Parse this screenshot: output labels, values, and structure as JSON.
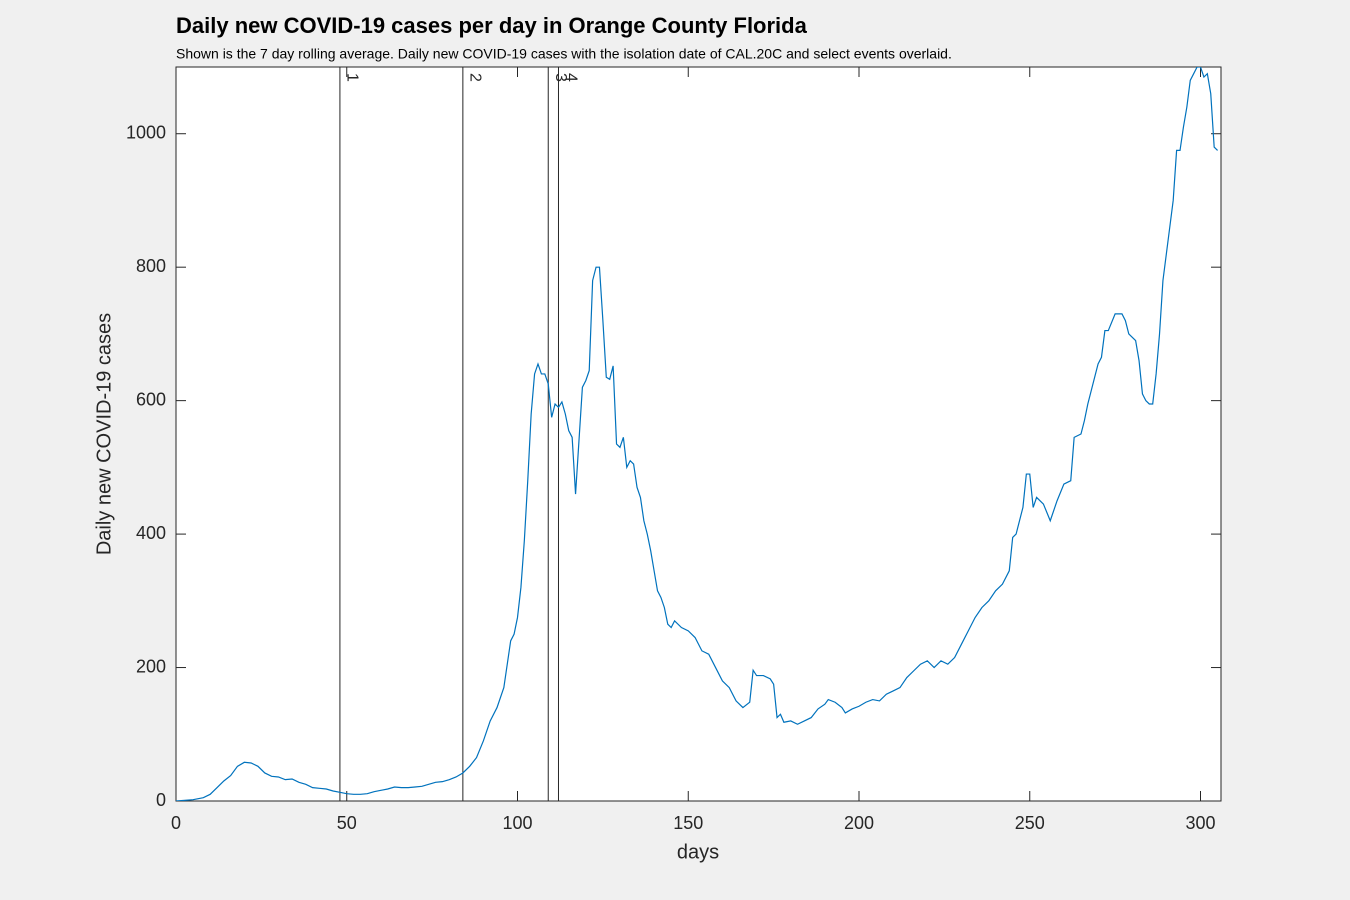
{
  "chart_data": {
    "type": "line",
    "title": "Daily new COVID-19 cases per day in Orange County Florida",
    "subtitle": "Shown is the 7 day rolling average. Daily new COVID-19 cases with the isolation date of CAL.20C and select events overlaid.",
    "x_label": "days",
    "y_label": "Daily new COVID-19 cases",
    "color": "#0072bd",
    "x": [
      0,
      5,
      8,
      10,
      12,
      14,
      16,
      18,
      20,
      22,
      24,
      26,
      28,
      30,
      32,
      34,
      36,
      38,
      40,
      42,
      44,
      46,
      48,
      50,
      52,
      54,
      56,
      58,
      60,
      62,
      64,
      66,
      68,
      70,
      72,
      74,
      76,
      78,
      80,
      82,
      84,
      86,
      88,
      90,
      92,
      94,
      96,
      98,
      99,
      100,
      101,
      102,
      103,
      104,
      105,
      106,
      107,
      108,
      109,
      110,
      111,
      112,
      113,
      114,
      115,
      116,
      117,
      118,
      119,
      120,
      121,
      122,
      123,
      124,
      125,
      126,
      127,
      128,
      129,
      130,
      131,
      132,
      133,
      134,
      135,
      136,
      137,
      138,
      139,
      140,
      141,
      142,
      143,
      144,
      145,
      146,
      148,
      150,
      152,
      154,
      156,
      158,
      160,
      162,
      164,
      166,
      168,
      169,
      170,
      172,
      174,
      175,
      176,
      177,
      178,
      180,
      182,
      184,
      186,
      188,
      190,
      191,
      193,
      195,
      196,
      198,
      200,
      202,
      204,
      206,
      208,
      210,
      212,
      214,
      216,
      218,
      220,
      222,
      224,
      226,
      228,
      230,
      232,
      234,
      236,
      238,
      240,
      242,
      244,
      245,
      246,
      248,
      249,
      250,
      251,
      252,
      254,
      256,
      258,
      260,
      262,
      263,
      265,
      266,
      267,
      268,
      270,
      271,
      272,
      273,
      275,
      277,
      278,
      279,
      281,
      282,
      283,
      284,
      285,
      286,
      287,
      288,
      289,
      290,
      291,
      292,
      293,
      294,
      295,
      296,
      297,
      298,
      299,
      300,
      301,
      302,
      303,
      304,
      305
    ],
    "values": [
      0,
      2,
      5,
      10,
      20,
      30,
      38,
      52,
      58,
      57,
      52,
      42,
      37,
      36,
      32,
      33,
      28,
      25,
      20,
      19,
      18,
      15,
      13,
      11,
      10,
      10,
      11,
      14,
      16,
      18,
      21,
      20,
      20,
      21,
      22,
      25,
      28,
      29,
      32,
      36,
      42,
      52,
      65,
      90,
      120,
      140,
      170,
      240,
      250,
      275,
      320,
      390,
      480,
      580,
      640,
      655,
      640,
      640,
      625,
      575,
      595,
      590,
      598,
      580,
      555,
      545,
      460,
      540,
      620,
      630,
      645,
      780,
      800,
      800,
      720,
      635,
      632,
      652,
      535,
      530,
      545,
      500,
      510,
      505,
      470,
      455,
      420,
      400,
      375,
      345,
      315,
      305,
      290,
      265,
      260,
      270,
      260,
      255,
      245,
      225,
      220,
      200,
      180,
      170,
      150,
      140,
      148,
      196,
      188,
      188,
      183,
      175,
      125,
      130,
      118,
      120,
      115,
      120,
      125,
      138,
      145,
      152,
      148,
      140,
      132,
      138,
      142,
      148,
      152,
      150,
      160,
      165,
      170,
      185,
      195,
      205,
      210,
      200,
      210,
      205,
      215,
      235,
      255,
      275,
      290,
      300,
      315,
      325,
      345,
      395,
      400,
      440,
      490,
      490,
      440,
      455,
      445,
      420,
      450,
      475,
      480,
      545,
      550,
      570,
      595,
      615,
      655,
      665,
      705,
      705,
      730,
      730,
      720,
      700,
      690,
      660,
      610,
      600,
      595,
      595,
      640,
      700,
      780,
      820,
      860,
      900,
      975,
      975,
      1010,
      1040,
      1080,
      1090,
      1100,
      1100,
      1085,
      1090,
      1060,
      980,
      975
    ],
    "events": [
      {
        "x": 48,
        "label": "1"
      },
      {
        "x": 84,
        "label": "2"
      },
      {
        "x": 109,
        "label": "3"
      },
      {
        "x": 112,
        "label": "4"
      }
    ],
    "xlim": [
      0,
      306
    ],
    "ylim": [
      0,
      1100
    ],
    "xticks": [
      0,
      50,
      100,
      150,
      200,
      250,
      300
    ],
    "yticks": [
      0,
      200,
      400,
      600,
      800,
      1000
    ],
    "grid": false
  }
}
